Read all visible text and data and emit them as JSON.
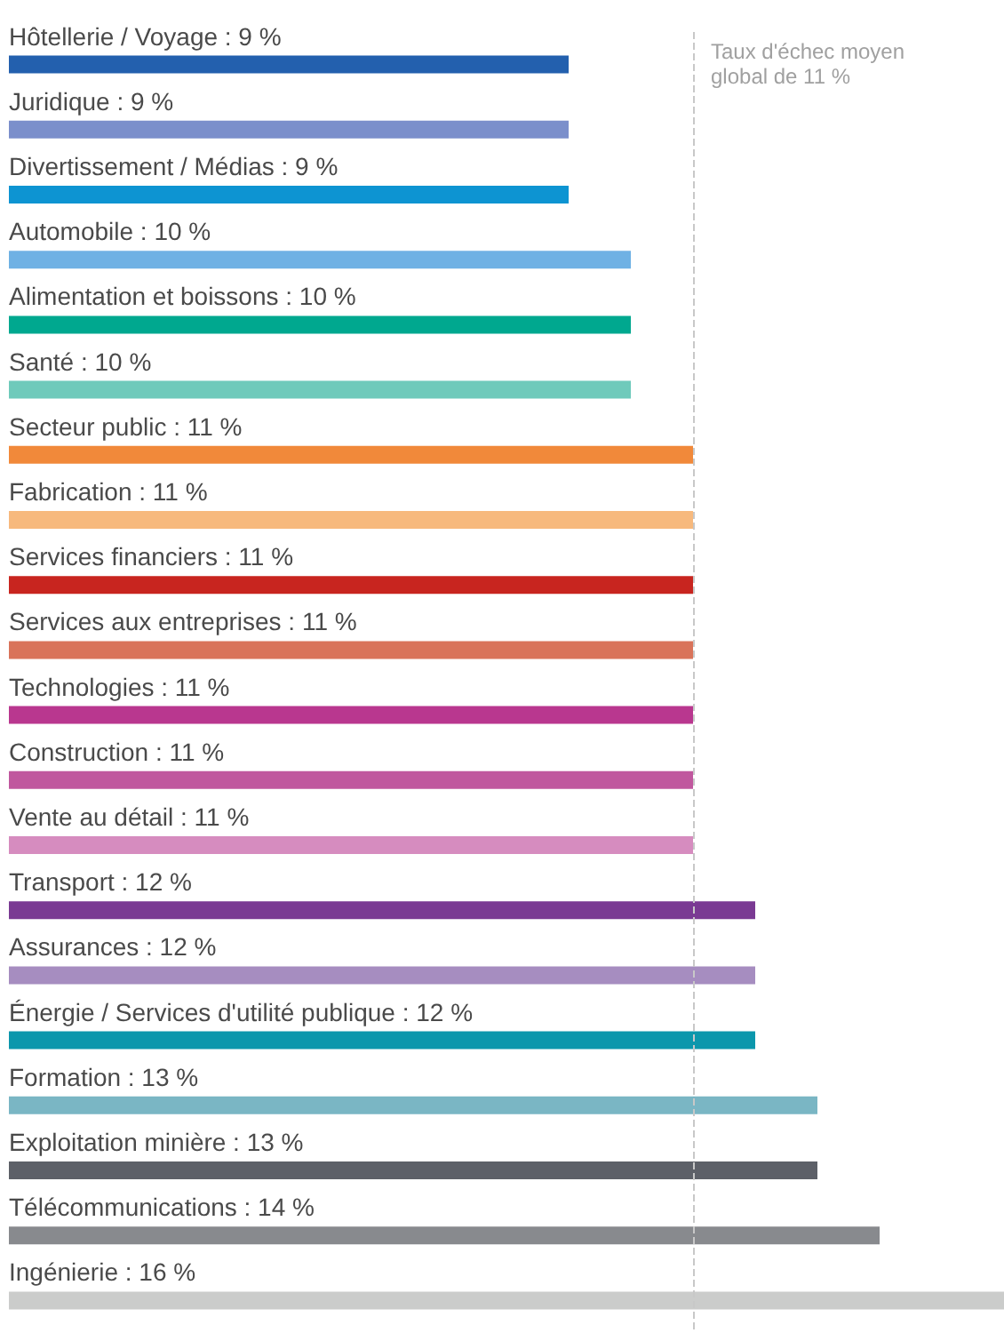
{
  "chart_data": {
    "type": "bar",
    "orientation": "horizontal",
    "categories": [
      "Hôtellerie / Voyage",
      "Juridique",
      "Divertissement / Médias",
      "Automobile",
      "Alimentation et boissons",
      "Santé",
      "Secteur public",
      "Fabrication",
      "Services financiers",
      "Services aux entreprises",
      "Technologies",
      "Construction",
      "Vente au détail",
      "Transport",
      "Assurances",
      "Énergie / Services d'utilité publique",
      "Formation",
      "Exploitation minière",
      "Télécommunications",
      "Ingénierie"
    ],
    "values": [
      9,
      9,
      9,
      10,
      10,
      10,
      11,
      11,
      11,
      11,
      11,
      11,
      11,
      12,
      12,
      12,
      13,
      13,
      14,
      16
    ],
    "value_labels": [
      ": 9 %",
      ": 9 %",
      ": 9 %",
      ": 10 %",
      ": 10 %",
      ": 10 %",
      ": 11 %",
      ": 11 %",
      ": 11 %",
      ": 11 %",
      ": 11 %",
      ": 11 %",
      ": 11 %",
      ": 12 %",
      ": 12 %",
      ": 12 %",
      ": 13 %",
      ": 13 %",
      ": 14 %",
      ": 16 %"
    ],
    "colors": [
      "#2360ae",
      "#7b8fcb",
      "#0d94d2",
      "#6fb1e4",
      "#00a88f",
      "#6fcabb",
      "#f1893a",
      "#f7b97d",
      "#c8251f",
      "#d9735a",
      "#b9378f",
      "#c0579e",
      "#d68cbf",
      "#7a3a93",
      "#a68dc0",
      "#0c97ac",
      "#7ab6c4",
      "#5d6068",
      "#888a8e",
      "#cbcccb"
    ],
    "tick_labels": "y",
    "grid": false,
    "ref_lines": [
      {
        "axis": "x",
        "value": 11,
        "label": "Taux d'échec moyen global de 11 %",
        "color": "#c8c8c8",
        "line_style": "dashed"
      }
    ]
  }
}
